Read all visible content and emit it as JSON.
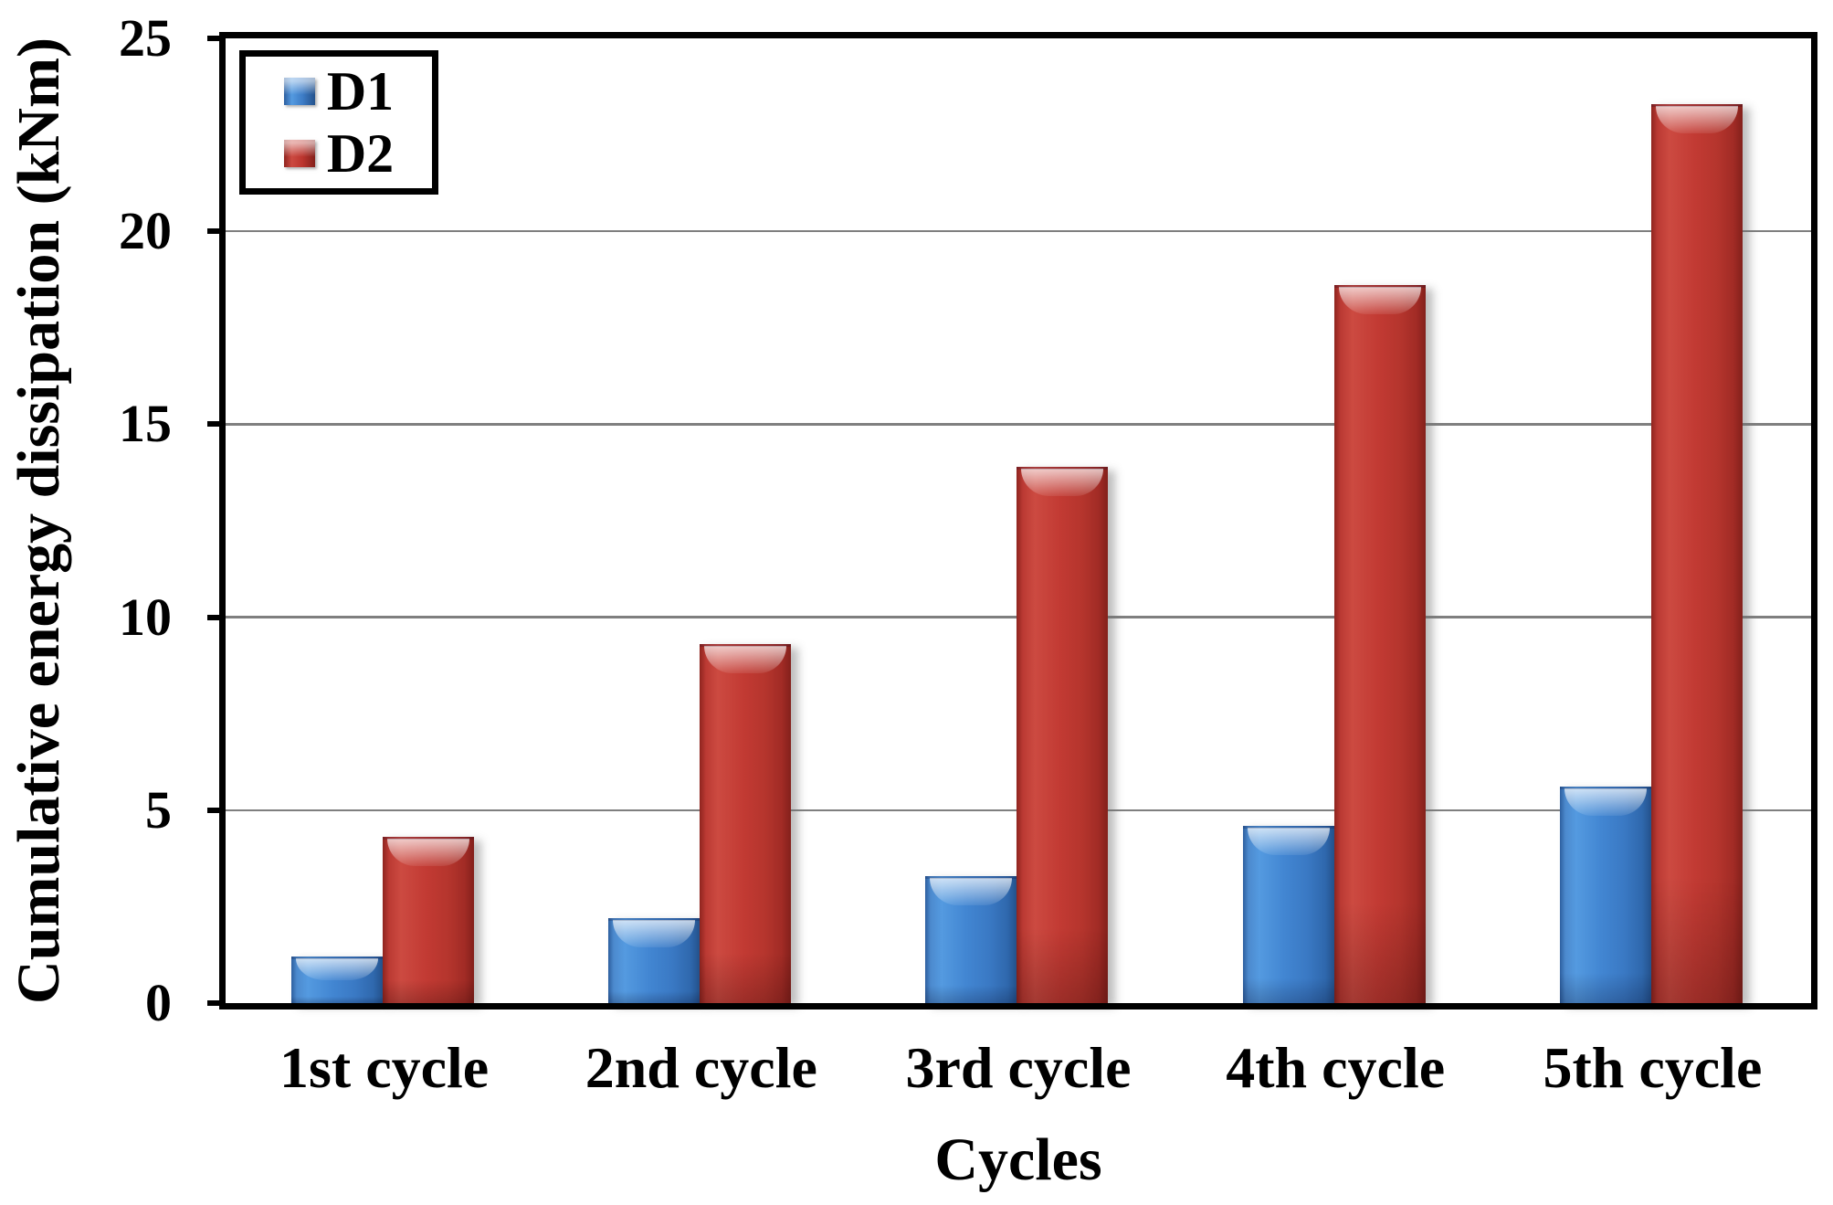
{
  "page": {
    "background": "#ffffff"
  },
  "chart_data": {
    "type": "bar",
    "title": "",
    "xlabel": "Cycles",
    "ylabel": "Cumulative energy dissipation (kNm)",
    "categories": [
      "1st cycle",
      "2nd cycle",
      "3rd cycle",
      "4th cycle",
      "5th cycle"
    ],
    "series": [
      {
        "name": "D1",
        "color": "#3E7CC6",
        "values": [
          1.2,
          2.2,
          3.3,
          4.6,
          5.6
        ]
      },
      {
        "name": "D2",
        "color": "#BE3A33",
        "values": [
          4.3,
          9.3,
          13.9,
          18.6,
          23.3
        ]
      }
    ],
    "ylim": [
      0,
      25
    ],
    "ytick_step": 5,
    "ytick_labels": [
      "0",
      "5",
      "10",
      "15",
      "20",
      "25"
    ],
    "grid": true,
    "grid_color": "#7f7f7f",
    "axis_color": "#000000",
    "legend_position": "top-left",
    "legend_labels": [
      "D1",
      "D2"
    ]
  }
}
